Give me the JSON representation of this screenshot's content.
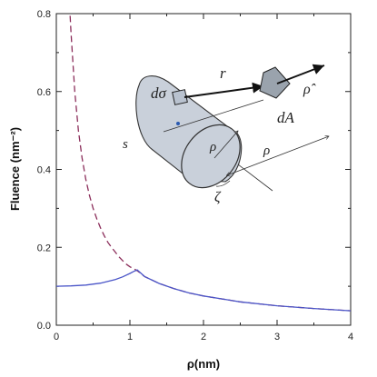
{
  "chart_data": {
    "type": "line",
    "xlabel": "ρ(nm)",
    "ylabel": "Fluence (nm⁻²)",
    "xlim": [
      0,
      4
    ],
    "ylim": [
      0,
      0.8
    ],
    "x_ticks": [
      "0",
      "1",
      "2",
      "3",
      "4"
    ],
    "y_ticks": [
      "0.0",
      "0.2",
      "0.4",
      "0.6",
      "0.8"
    ],
    "grid": false,
    "series": [
      {
        "style": "dashed",
        "color": "#8b2d5a",
        "x": [
          0.18,
          0.2,
          0.25,
          0.3,
          0.35,
          0.4,
          0.45,
          0.5,
          0.55,
          0.6,
          0.65,
          0.7,
          0.75,
          0.8,
          0.85,
          0.9,
          0.95,
          1.0,
          1.05,
          1.1,
          1.2,
          1.4,
          1.6,
          1.8,
          2.0,
          2.5,
          3.0,
          3.5,
          4.0
        ],
        "y": [
          0.82,
          0.75,
          0.6,
          0.5,
          0.43,
          0.375,
          0.333,
          0.3,
          0.273,
          0.25,
          0.23,
          0.213,
          0.2,
          0.188,
          0.176,
          0.166,
          0.157,
          0.15,
          0.145,
          0.14,
          0.125,
          0.107,
          0.094,
          0.083,
          0.075,
          0.06,
          0.05,
          0.043,
          0.037
        ]
      },
      {
        "style": "solid",
        "color": "#4a55c8",
        "x": [
          0.0,
          0.2,
          0.4,
          0.6,
          0.8,
          0.9,
          1.0,
          1.05,
          1.1,
          1.2,
          1.4,
          1.6,
          1.8,
          2.0,
          2.5,
          3.0,
          3.5,
          4.0
        ],
        "y": [
          0.1,
          0.101,
          0.103,
          0.108,
          0.117,
          0.124,
          0.133,
          0.138,
          0.142,
          0.125,
          0.107,
          0.094,
          0.083,
          0.075,
          0.06,
          0.05,
          0.043,
          0.037
        ]
      }
    ],
    "inset_labels": {
      "d_sigma": "dσ",
      "r_vec": "r⃗",
      "rho_hat": "ρ̂",
      "dA": "dA",
      "s": "s",
      "rho_inner": "ρ",
      "rho_outer": "ρ",
      "zeta": "ζ"
    }
  }
}
